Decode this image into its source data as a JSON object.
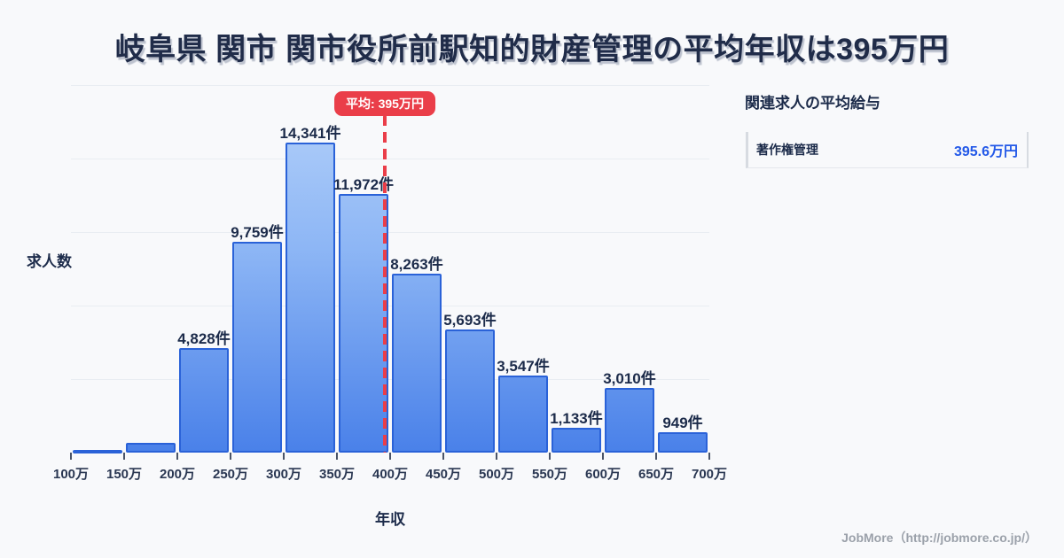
{
  "title": "岐阜県 関市 関市役所前駅知的財産管理の平均年収は395万円",
  "chart": {
    "y_axis_label": "求人数",
    "x_axis_label": "年収",
    "average_badge": "平均: 395万円"
  },
  "related_panel": {
    "title": "関連求人の平均給与",
    "rows": [
      {
        "label": "著作権管理",
        "value": "395.6万円"
      }
    ]
  },
  "footer": "JobMore（http://jobmore.co.jp/）",
  "chart_data": {
    "type": "bar",
    "title": "岐阜県 関市 関市役所前駅知的財産管理の平均年収は395万円",
    "xlabel": "年収",
    "ylabel": "求人数",
    "unit_x": "万円",
    "unit_y": "件",
    "x_tick_labels": [
      "100万",
      "150万",
      "200万",
      "250万",
      "300万",
      "350万",
      "400万",
      "450万",
      "500万",
      "550万",
      "600万",
      "650万",
      "700万"
    ],
    "bin_edges": [
      100,
      150,
      200,
      250,
      300,
      350,
      400,
      450,
      500,
      550,
      600,
      650,
      700
    ],
    "values": [
      120,
      450,
      4828,
      9759,
      14341,
      11972,
      8263,
      5693,
      3547,
      1133,
      3010,
      949
    ],
    "value_labels": [
      "",
      "",
      "4,828件",
      "9,759件",
      "14,341件",
      "11,972件",
      "8,263件",
      "5,693件",
      "3,547件",
      "1,133件",
      "3,010件",
      "949件"
    ],
    "average_line": {
      "value": 395,
      "label": "平均: 395万円"
    },
    "ylim": [
      0,
      17000
    ],
    "gridline_count": 5,
    "grid": true,
    "legend": "none"
  },
  "colors": {
    "background": "#f8f9fb",
    "bar_fill_top": "#b7d3fa",
    "bar_fill_bottom": "#4a81e9",
    "bar_border": "#2a62d8",
    "average_line": "#ea3e49",
    "title_text": "#202c49",
    "value_highlight": "#2359e8",
    "grid_line": "#e9edf2",
    "footer_text": "#9ba1aa"
  }
}
